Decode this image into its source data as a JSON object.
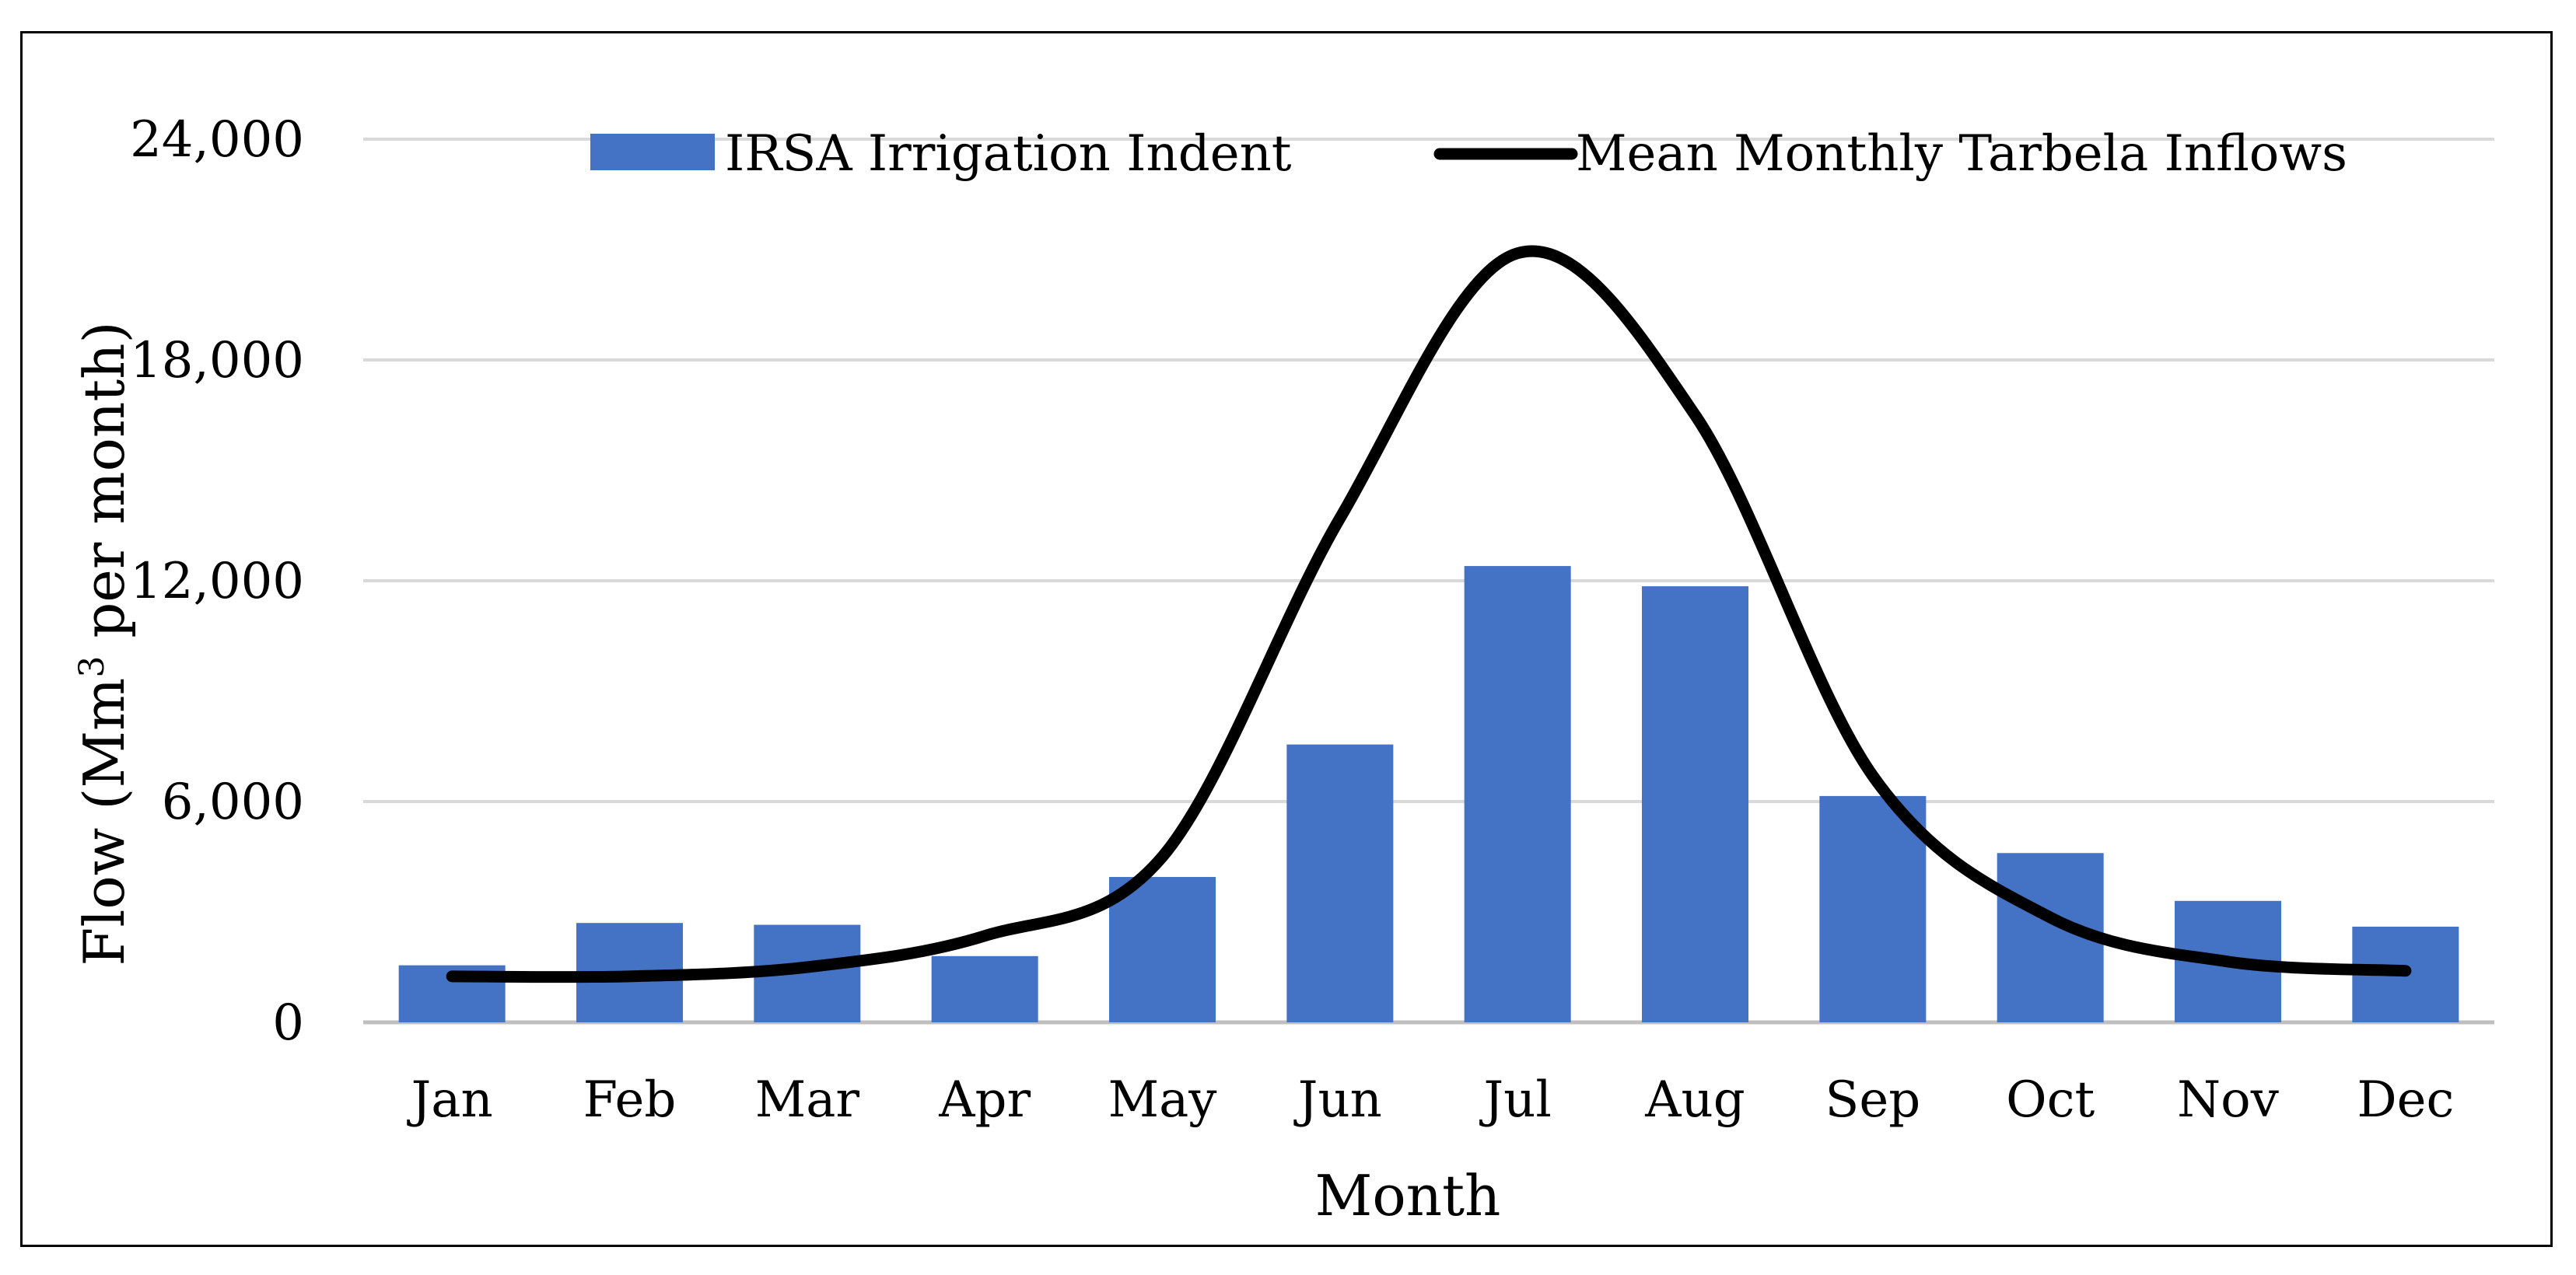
{
  "chart_data": {
    "type": "bar+line",
    "title": "",
    "xlabel": "Month",
    "ylabel": "Flow (Mm³ per month)",
    "ylabel_parts": {
      "before": "Flow (Mm",
      "sup": "3",
      "after": " per month)"
    },
    "categories": [
      "Jan",
      "Feb",
      "Mar",
      "Apr",
      "May",
      "Jun",
      "Jul",
      "Aug",
      "Sep",
      "Oct",
      "Nov",
      "Dec"
    ],
    "ylim": [
      0,
      24000
    ],
    "yticks": [
      0,
      6000,
      12000,
      18000,
      24000
    ],
    "ytick_labels": [
      "0",
      "6,000",
      "12,000",
      "18,000",
      "24,000"
    ],
    "grid": true,
    "legend_position": "top",
    "series": [
      {
        "name": "IRSA Irrigation Indent",
        "type": "bar",
        "color": "#4472C4",
        "values": [
          1550,
          2700,
          2650,
          1800,
          3950,
          7550,
          12400,
          11850,
          6150,
          4600,
          3300,
          2600
        ]
      },
      {
        "name": "Mean Monthly Tarbela Inflows",
        "type": "line",
        "smooth": true,
        "color": "#000000",
        "values": [
          1250,
          1250,
          1500,
          2350,
          4500,
          13700,
          20900,
          16500,
          6700,
          2850,
          1650,
          1400
        ]
      }
    ]
  }
}
